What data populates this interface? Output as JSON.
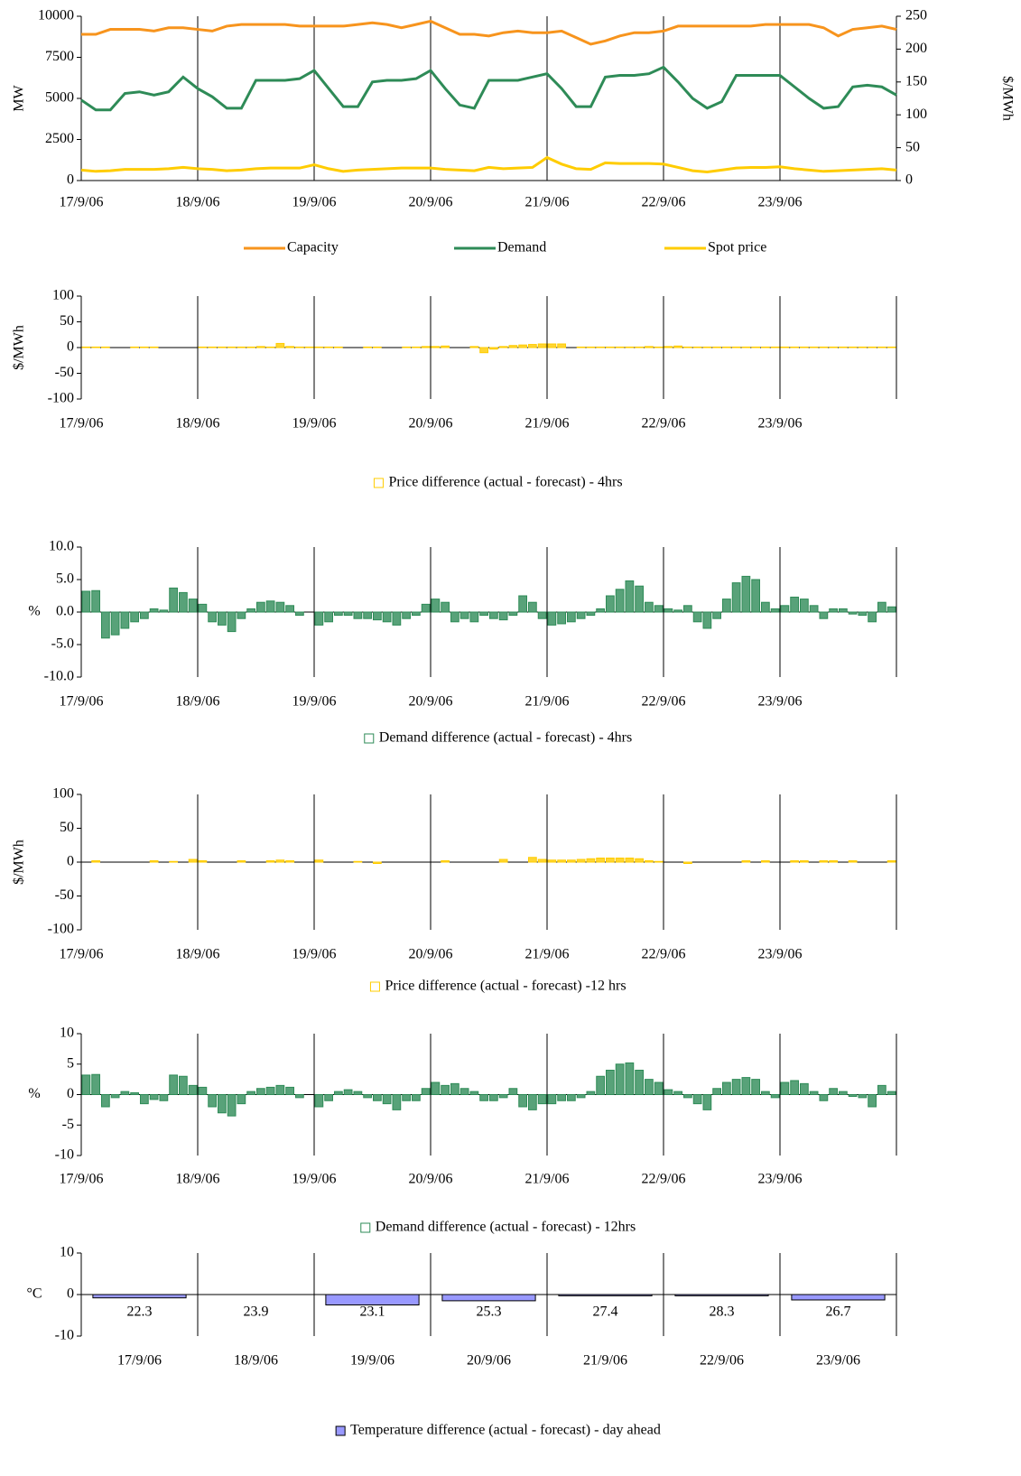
{
  "chart_data": [
    {
      "type": "line",
      "ylabel": "MW",
      "y2label": "$/MWh",
      "xlim": [
        0,
        7
      ],
      "xticks": [
        {
          "value": 0,
          "label": "17/9/06"
        },
        {
          "value": 1,
          "label": "18/9/06"
        },
        {
          "value": 2,
          "label": "19/9/06"
        },
        {
          "value": 3,
          "label": "20/9/06"
        },
        {
          "value": 4,
          "label": "21/9/06"
        },
        {
          "value": 5,
          "label": "22/9/06"
        },
        {
          "value": 6,
          "label": "23/9/06"
        }
      ],
      "ylim": [
        0,
        10000
      ],
      "yticks": [
        0,
        2500,
        5000,
        7500,
        10000
      ],
      "y2lim": [
        0,
        250
      ],
      "y2ticks": [
        0,
        50,
        100,
        150,
        200,
        250
      ],
      "series": [
        {
          "name": "Capacity",
          "color": "#f7941d",
          "values": [
            8900,
            8900,
            9200,
            9200,
            9200,
            9100,
            9300,
            9300,
            9200,
            9100,
            9400,
            9500,
            9500,
            9500,
            9500,
            9400,
            9400,
            9400,
            9400,
            9500,
            9600,
            9500,
            9300,
            9500,
            9700,
            9300,
            8900,
            8900,
            8800,
            9000,
            9100,
            9000,
            9000,
            9100,
            8700,
            8300,
            8500,
            8800,
            9000,
            9000,
            9100,
            9400,
            9400,
            9400,
            9400,
            9400,
            9400,
            9500,
            9500,
            9500,
            9500,
            9300,
            8800,
            9200,
            9300,
            9400,
            9200
          ]
        },
        {
          "name": "Demand",
          "color": "#2e8b57",
          "values": [
            4900,
            4300,
            4300,
            5300,
            5400,
            5200,
            5400,
            6300,
            5600,
            5100,
            4400,
            4400,
            6100,
            6100,
            6100,
            6200,
            6700,
            5600,
            4500,
            4500,
            6000,
            6100,
            6100,
            6200,
            6700,
            5600,
            4600,
            4400,
            6100,
            6100,
            6100,
            6300,
            6500,
            5600,
            4500,
            4500,
            6300,
            6400,
            6400,
            6500,
            6900,
            6000,
            5000,
            4400,
            4800,
            6400,
            6400,
            6400,
            6400,
            5700,
            5000,
            4400,
            4500,
            5700,
            5800,
            5700,
            5200
          ]
        },
        {
          "name": "Spot price",
          "color": "#ffcc00",
          "axis": "y2",
          "values": [
            16,
            14,
            15,
            17,
            17,
            17,
            18,
            20,
            18,
            17,
            15,
            16,
            18,
            19,
            19,
            19,
            24,
            18,
            14,
            16,
            17,
            18,
            19,
            19,
            19,
            17,
            16,
            15,
            20,
            18,
            19,
            20,
            35,
            25,
            18,
            17,
            27,
            26,
            26,
            26,
            25,
            20,
            15,
            13,
            16,
            19,
            20,
            20,
            21,
            18,
            16,
            14,
            15,
            16,
            17,
            18,
            16
          ]
        }
      ]
    },
    {
      "type": "bar",
      "ylabel": "$/MWh",
      "xlim": [
        0,
        7
      ],
      "xticks": [
        {
          "value": 0,
          "label": "17/9/06"
        },
        {
          "value": 1,
          "label": "18/9/06"
        },
        {
          "value": 2,
          "label": "19/9/06"
        },
        {
          "value": 3,
          "label": "20/9/06"
        },
        {
          "value": 4,
          "label": "21/9/06"
        },
        {
          "value": 5,
          "label": "22/9/06"
        },
        {
          "value": 6,
          "label": "23/9/06"
        }
      ],
      "ylim": [
        -100,
        100
      ],
      "yticks": [
        100,
        50,
        0,
        -50,
        -100
      ],
      "series": [
        {
          "name": "Price difference (actual - forecast) - 4hrs",
          "color": "#ffcc00",
          "values": [
            1,
            1,
            1,
            0,
            0,
            1,
            1,
            1,
            0,
            0,
            0,
            0,
            1,
            1,
            1,
            1,
            1,
            1,
            2,
            1,
            8,
            2,
            1,
            1,
            1,
            1,
            1,
            0,
            0,
            1,
            1,
            0,
            0,
            1,
            1,
            2,
            2,
            3,
            0,
            0,
            2,
            -10,
            -3,
            2,
            4,
            5,
            6,
            7,
            7,
            7,
            0,
            1,
            1,
            1,
            1,
            1,
            1,
            1,
            2,
            1,
            2,
            3,
            1,
            1,
            1,
            1,
            1,
            1,
            1,
            1,
            1,
            1,
            1,
            1,
            1,
            1,
            1,
            1,
            1,
            1,
            1,
            1,
            1,
            1
          ]
        }
      ]
    },
    {
      "type": "bar",
      "ylabel": "%",
      "xlim": [
        0,
        7
      ],
      "xticks": [
        {
          "value": 0,
          "label": "17/9/06"
        },
        {
          "value": 1,
          "label": "18/9/06"
        },
        {
          "value": 2,
          "label": "19/9/06"
        },
        {
          "value": 3,
          "label": "20/9/06"
        },
        {
          "value": 4,
          "label": "21/9/06"
        },
        {
          "value": 5,
          "label": "22/9/06"
        },
        {
          "value": 6,
          "label": "23/9/06"
        }
      ],
      "ylim": [
        -10,
        10
      ],
      "yticks": [
        {
          "value": 10,
          "label": "10.0"
        },
        {
          "value": 5,
          "label": "5.0"
        },
        {
          "value": 0,
          "label": "0.0"
        },
        {
          "value": -5,
          "label": "-5.0"
        },
        {
          "value": -10,
          "label": "-10.0"
        }
      ],
      "series": [
        {
          "name": "Demand difference (actual - forecast) - 4hrs",
          "color": "#2e8b57",
          "values": [
            3.2,
            3.3,
            -4,
            -3.5,
            -2.5,
            -1.5,
            -1,
            0.5,
            0.3,
            3.7,
            3,
            2,
            1.2,
            -1.5,
            -2,
            -3,
            -1,
            0.5,
            1.5,
            1.7,
            1.5,
            1,
            -0.5,
            0,
            -2,
            -1.5,
            -0.5,
            -0.5,
            -1,
            -1,
            -1.2,
            -1.5,
            -2,
            -1,
            -0.5,
            1.2,
            2,
            1.5,
            -1.5,
            -1,
            -1.5,
            -0.5,
            -1,
            -1.2,
            -0.5,
            2.5,
            1.5,
            -1,
            -2,
            -1.8,
            -1.5,
            -1,
            -0.5,
            0.5,
            2.5,
            3.5,
            4.8,
            4,
            1.5,
            1,
            0.5,
            0.3,
            1,
            -1.5,
            -2.5,
            -1,
            2,
            4.5,
            5.5,
            5,
            1.5,
            0.5,
            1,
            2.3,
            2,
            1,
            -1,
            0.5,
            0.5,
            -0.3,
            -0.5,
            -1.5,
            1.5,
            0.8
          ]
        }
      ]
    },
    {
      "type": "bar",
      "ylabel": "$/MWh",
      "xlim": [
        0,
        7
      ],
      "xticks": [
        {
          "value": 0,
          "label": "17/9/06"
        },
        {
          "value": 1,
          "label": "18/9/06"
        },
        {
          "value": 2,
          "label": "19/9/06"
        },
        {
          "value": 3,
          "label": "20/9/06"
        },
        {
          "value": 4,
          "label": "21/9/06"
        },
        {
          "value": 5,
          "label": "22/9/06"
        },
        {
          "value": 6,
          "label": "23/9/06"
        }
      ],
      "ylim": [
        -100,
        100
      ],
      "yticks": [
        100,
        50,
        0,
        -50,
        -100
      ],
      "series": [
        {
          "name": "Price difference (actual - forecast) -12 hrs",
          "color": "#ffcc00",
          "values": [
            0,
            2,
            0,
            0,
            0,
            0,
            0,
            2,
            0,
            1,
            0,
            4,
            2,
            0,
            0,
            0,
            2,
            0,
            0,
            2,
            3,
            2,
            0,
            0,
            3,
            0,
            0,
            0,
            1,
            0,
            -2,
            0,
            0,
            0,
            0,
            0,
            0,
            2,
            0,
            0,
            0,
            0,
            0,
            4,
            0,
            0,
            7,
            4,
            3,
            3,
            3,
            4,
            5,
            6,
            6,
            6,
            6,
            5,
            2,
            1,
            0,
            0,
            -2,
            0,
            0,
            0,
            0,
            0,
            2,
            0,
            2,
            0,
            0,
            2,
            2,
            0,
            2,
            2,
            0,
            2,
            0,
            0,
            0,
            2
          ]
        }
      ]
    },
    {
      "type": "bar",
      "ylabel": "%",
      "xlim": [
        0,
        7
      ],
      "xticks": [
        {
          "value": 0,
          "label": "17/9/06"
        },
        {
          "value": 1,
          "label": "18/9/06"
        },
        {
          "value": 2,
          "label": "19/9/06"
        },
        {
          "value": 3,
          "label": "20/9/06"
        },
        {
          "value": 4,
          "label": "21/9/06"
        },
        {
          "value": 5,
          "label": "22/9/06"
        },
        {
          "value": 6,
          "label": "23/9/06"
        }
      ],
      "ylim": [
        -10,
        10
      ],
      "yticks": [
        10,
        5,
        0,
        -5,
        -10
      ],
      "series": [
        {
          "name": "Demand difference (actual - forecast) - 12hrs",
          "color": "#2e8b57",
          "values": [
            3.2,
            3.3,
            -2,
            -0.5,
            0.5,
            0.3,
            -1.5,
            -0.8,
            -1,
            3.2,
            3,
            1.5,
            1.2,
            -2,
            -3,
            -3.5,
            -1.5,
            0.5,
            1,
            1.2,
            1.5,
            1.2,
            -0.5,
            0,
            -2,
            -1,
            0.5,
            0.8,
            0.5,
            -0.5,
            -1,
            -1.5,
            -2.5,
            -1,
            -1,
            1,
            2,
            1.5,
            1.8,
            1,
            0.5,
            -1,
            -1,
            -0.5,
            1,
            -2,
            -2.5,
            -1.5,
            -1.5,
            -1,
            -1,
            -0.5,
            0.5,
            3,
            4,
            5,
            5.2,
            4,
            2.5,
            2,
            0.8,
            0.5,
            -0.5,
            -1.5,
            -2.5,
            1,
            2,
            2.5,
            2.8,
            2.5,
            0.5,
            -0.5,
            2,
            2.3,
            1.8,
            0.5,
            -1,
            1,
            0.5,
            -0.3,
            -0.5,
            -2,
            1.5,
            0.5
          ]
        }
      ]
    },
    {
      "type": "category-bar",
      "ylabel": "°C",
      "categories": [
        "17/9/06",
        "18/9/06",
        "19/9/06",
        "20/9/06",
        "21/9/06",
        "22/9/06",
        "23/9/06"
      ],
      "ylim": [
        -10,
        10
      ],
      "yticks": [
        10,
        0,
        -10
      ],
      "actual_temperatures": [
        22.3,
        23.9,
        23.1,
        25.3,
        27.4,
        28.3,
        26.7
      ],
      "series": [
        {
          "name": "Temperature difference (actual - forecast) - day ahead",
          "color": "#9999ff",
          "values": [
            -0.8,
            0,
            -2.5,
            -1.5,
            -0.3,
            -0.3,
            -1.3
          ]
        }
      ]
    }
  ]
}
